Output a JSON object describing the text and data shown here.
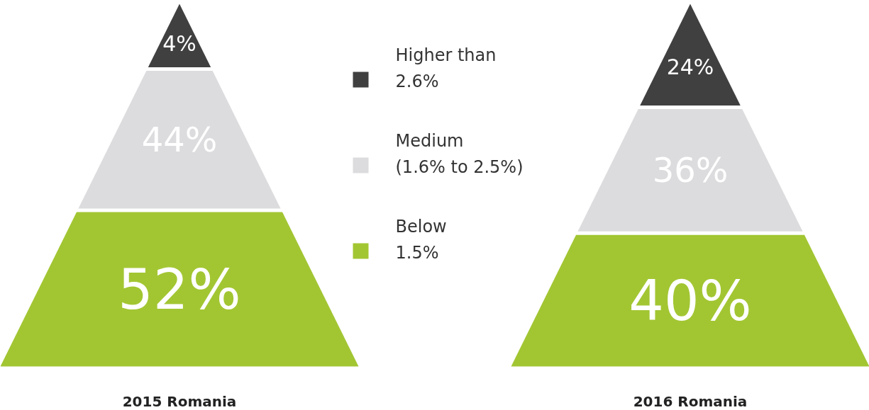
{
  "chart_data": {
    "type": "other",
    "categories": [
      "Higher than\n2.6%",
      "Medium\n(1.6% to 2.5%)",
      "Below\n1.5%"
    ],
    "colors": [
      "#404040",
      "#dcdcde",
      "#a2c632"
    ],
    "series": [
      {
        "name": "2015 Romania",
        "colors": [
          "#404040",
          "#dcdcde",
          "#a2c632"
        ],
        "values": [
          4,
          44,
          52
        ],
        "value_labels": [
          "4%",
          "44%",
          "52%"
        ]
      },
      {
        "name": "2016 Romania",
        "colors": [
          "#404040",
          "#dcdcde",
          "#a2c632"
        ],
        "values": [
          24,
          36,
          40
        ],
        "value_labels": [
          "24%",
          "36%",
          "40%"
        ]
      }
    ],
    "legend": "center"
  }
}
